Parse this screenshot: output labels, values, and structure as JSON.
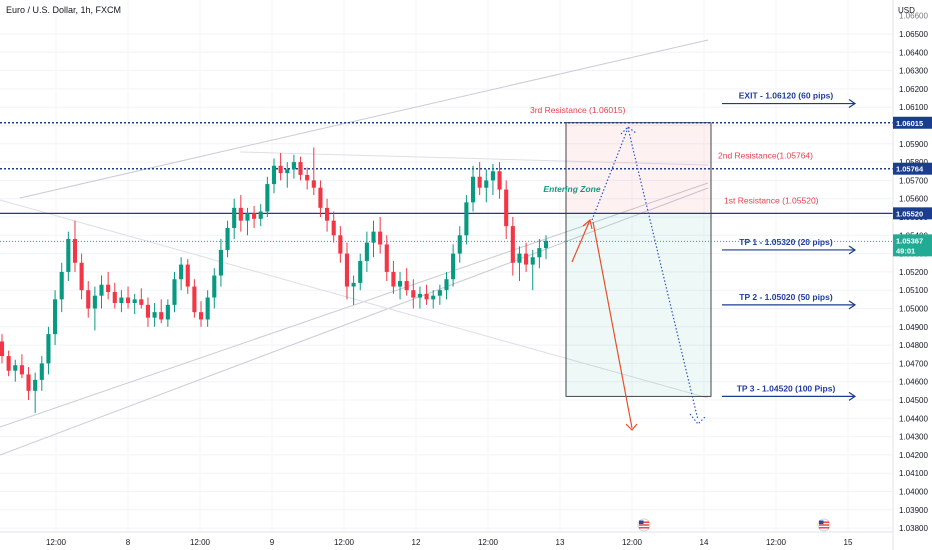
{
  "header": {
    "title": "Euro / U.S. Dollar, 1h, FXCM",
    "currency": "USD"
  },
  "colors": {
    "bull": "#089981",
    "bear": "#f23645",
    "level": "#1b3d8f",
    "red_text": "#e8414e",
    "tp_text": "#1f3e9c",
    "current": "#22ab94",
    "grid": "#f0f3fa"
  },
  "chart_data": {
    "type": "candlestick",
    "title": "Euro / U.S. Dollar, 1h, FXCM",
    "y_axis": {
      "unit": "USD",
      "range": [
        1.0373,
        1.0668
      ],
      "ticks": [
        "1.06500",
        "1.06400",
        "1.06300",
        "1.06200",
        "1.06100",
        "1.06000",
        "1.05900",
        "1.05800",
        "1.05700",
        "1.05600",
        "1.05500",
        "1.05400",
        "1.05300",
        "1.05200",
        "1.05100",
        "1.05000",
        "1.04900",
        "1.04800",
        "1.04700",
        "1.04600",
        "1.04500",
        "1.04400",
        "1.04300",
        "1.04200",
        "1.04100",
        "1.04000",
        "1.03900",
        "1.03800"
      ],
      "partial_top_tick": "1.06600"
    },
    "x_axis": {
      "ticks": [
        "12:00",
        "8",
        "12:00",
        "9",
        "12:00",
        "12",
        "12:00",
        "13",
        "12:00",
        "14",
        "12:00",
        "15"
      ]
    },
    "levels": [
      {
        "name": "3rd Resistance",
        "label": "3rd Resistance (1.06015)",
        "price": 1.06015,
        "tag": "1.06015"
      },
      {
        "name": "2nd Resistance",
        "label": "2nd Resistance(1.05764)",
        "price": 1.05764,
        "tag": "1.05764"
      },
      {
        "name": "1st Resistance",
        "label": "1st Resistance (1.05520)",
        "price": 1.0552,
        "tag": "1.05520"
      }
    ],
    "current_price": {
      "price": 1.05367,
      "label": "1.05367",
      "countdown": "49:01"
    },
    "targets": [
      {
        "label": "EXIT - 1.06120 (60 pips)",
        "price": 1.0612
      },
      {
        "label": "TP 1 - 1.05320 (20 pips)",
        "price": 1.0532
      },
      {
        "label": "TP 2 - 1.05020 (50 pips)",
        "price": 1.0502
      },
      {
        "label": "TP 3 - 1.04520 (100 Pips)",
        "price": 1.0452
      }
    ],
    "annotation": "Entering Zone",
    "position": {
      "stop_price": 1.06015,
      "entry_price": 1.0552,
      "target_price": 1.0452
    },
    "candles": [
      [
        1.0482,
        1.0486,
        1.047,
        1.0474
      ],
      [
        1.0474,
        1.0477,
        1.0463,
        1.0466
      ],
      [
        1.0466,
        1.0472,
        1.046,
        1.0469
      ],
      [
        1.0469,
        1.0475,
        1.0462,
        1.0464
      ],
      [
        1.0464,
        1.0468,
        1.045,
        1.0455
      ],
      [
        1.0455,
        1.0465,
        1.0443,
        1.0461
      ],
      [
        1.0461,
        1.0474,
        1.0455,
        1.047
      ],
      [
        1.047,
        1.049,
        1.0464,
        1.0486
      ],
      [
        1.0486,
        1.051,
        1.048,
        1.0505
      ],
      [
        1.0505,
        1.0525,
        1.0498,
        1.052
      ],
      [
        1.052,
        1.0542,
        1.0515,
        1.0538
      ],
      [
        1.0538,
        1.0548,
        1.052,
        1.0525
      ],
      [
        1.0525,
        1.053,
        1.0505,
        1.051
      ],
      [
        1.051,
        1.0515,
        1.0495,
        1.05
      ],
      [
        1.05,
        1.0512,
        1.0488,
        1.0507
      ],
      [
        1.0507,
        1.0518,
        1.05,
        1.0513
      ],
      [
        1.0513,
        1.052,
        1.0505,
        1.0509
      ],
      [
        1.0509,
        1.0514,
        1.05,
        1.0503
      ],
      [
        1.0503,
        1.051,
        1.0498,
        1.0506
      ],
      [
        1.0506,
        1.0512,
        1.05,
        1.0503
      ],
      [
        1.0503,
        1.0508,
        1.0497,
        1.0505
      ],
      [
        1.0505,
        1.0511,
        1.05,
        1.0502
      ],
      [
        1.0502,
        1.0506,
        1.049,
        1.0495
      ],
      [
        1.0495,
        1.0503,
        1.049,
        1.0498
      ],
      [
        1.0498,
        1.0505,
        1.0492,
        1.0494
      ],
      [
        1.0494,
        1.0505,
        1.049,
        1.0502
      ],
      [
        1.0502,
        1.052,
        1.0498,
        1.0516
      ],
      [
        1.0516,
        1.0528,
        1.051,
        1.0524
      ],
      [
        1.0524,
        1.0527,
        1.0508,
        1.0512
      ],
      [
        1.0512,
        1.0516,
        1.0495,
        1.0498
      ],
      [
        1.0498,
        1.0504,
        1.049,
        1.0494
      ],
      [
        1.0494,
        1.051,
        1.049,
        1.0506
      ],
      [
        1.0506,
        1.0522,
        1.05,
        1.0518
      ],
      [
        1.0518,
        1.0538,
        1.0512,
        1.0532
      ],
      [
        1.0532,
        1.0548,
        1.0528,
        1.0544
      ],
      [
        1.0544,
        1.056,
        1.0538,
        1.0555
      ],
      [
        1.0555,
        1.0562,
        1.0542,
        1.0548
      ],
      [
        1.0548,
        1.0555,
        1.054,
        1.0552
      ],
      [
        1.0552,
        1.0556,
        1.0544,
        1.0549
      ],
      [
        1.0549,
        1.0557,
        1.0545,
        1.0553
      ],
      [
        1.0553,
        1.0572,
        1.055,
        1.0568
      ],
      [
        1.0568,
        1.0582,
        1.0563,
        1.0578
      ],
      [
        1.0578,
        1.0585,
        1.057,
        1.0574
      ],
      [
        1.0574,
        1.058,
        1.0566,
        1.0576
      ],
      [
        1.0576,
        1.0584,
        1.0571,
        1.058
      ],
      [
        1.058,
        1.0583,
        1.057,
        1.0573
      ],
      [
        1.0573,
        1.0577,
        1.0565,
        1.057
      ],
      [
        1.057,
        1.0588,
        1.0562,
        1.0566
      ],
      [
        1.0566,
        1.057,
        1.055,
        1.0555
      ],
      [
        1.0555,
        1.056,
        1.0542,
        1.0548
      ],
      [
        1.0548,
        1.0553,
        1.0536,
        1.054
      ],
      [
        1.054,
        1.0545,
        1.0525,
        1.053
      ],
      [
        1.053,
        1.0536,
        1.0505,
        1.0512
      ],
      [
        1.0512,
        1.0518,
        1.0502,
        1.0514
      ],
      [
        1.0514,
        1.053,
        1.051,
        1.0526
      ],
      [
        1.0526,
        1.0542,
        1.052,
        1.0536
      ],
      [
        1.0536,
        1.0548,
        1.0528,
        1.0542
      ],
      [
        1.0542,
        1.055,
        1.053,
        1.0535
      ],
      [
        1.0535,
        1.054,
        1.0515,
        1.052
      ],
      [
        1.052,
        1.0526,
        1.0508,
        1.0512
      ],
      [
        1.0512,
        1.052,
        1.0505,
        1.0515
      ],
      [
        1.0515,
        1.0522,
        1.0507,
        1.051
      ],
      [
        1.051,
        1.0516,
        1.05,
        1.0506
      ],
      [
        1.0506,
        1.0512,
        1.05,
        1.0508
      ],
      [
        1.0508,
        1.0513,
        1.0502,
        1.0505
      ],
      [
        1.0505,
        1.051,
        1.05,
        1.0507
      ],
      [
        1.0507,
        1.0513,
        1.0502,
        1.051
      ],
      [
        1.051,
        1.052,
        1.0505,
        1.0516
      ],
      [
        1.0516,
        1.0535,
        1.0512,
        1.053
      ],
      [
        1.053,
        1.0545,
        1.0525,
        1.054
      ],
      [
        1.054,
        1.0562,
        1.0535,
        1.0558
      ],
      [
        1.0558,
        1.0578,
        1.0553,
        1.0572
      ],
      [
        1.0572,
        1.058,
        1.0562,
        1.0566
      ],
      [
        1.0566,
        1.0576,
        1.0558,
        1.057
      ],
      [
        1.057,
        1.0579,
        1.0562,
        1.0575
      ],
      [
        1.0575,
        1.058,
        1.056,
        1.0565
      ],
      [
        1.0565,
        1.057,
        1.0538,
        1.0545
      ],
      [
        1.0545,
        1.055,
        1.0518,
        1.0525
      ],
      [
        1.0525,
        1.0534,
        1.0515,
        1.053
      ],
      [
        1.053,
        1.0536,
        1.052,
        1.0524
      ],
      [
        1.0524,
        1.0532,
        1.051,
        1.0528
      ],
      [
        1.0528,
        1.0538,
        1.0522,
        1.0533
      ],
      [
        1.0533,
        1.054,
        1.0527,
        1.0537
      ]
    ]
  }
}
